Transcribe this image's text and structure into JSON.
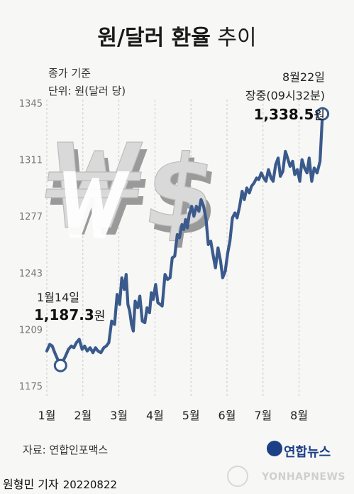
{
  "title": {
    "bold": "원/달러 환율",
    "normal": " 추이"
  },
  "notes": {
    "line1": "종가 기준",
    "line2": "단위: 원(달러 당)"
  },
  "annotations": {
    "end": {
      "date": "8월22일",
      "time": "장중(09시32분)",
      "value": "1,338.5",
      "unit": "원"
    },
    "start": {
      "date": "1월14일",
      "value": "1,187.3",
      "unit": "원"
    }
  },
  "source": "자료: 연합인포맥스",
  "byline": {
    "reporter": "원형민 기자",
    "date": "20220822"
  },
  "logo": {
    "name": "연합뉴스",
    "agency": "YONHAPNEWS"
  },
  "colors": {
    "line": "#3a5a8c",
    "marker_stroke": "#3a5a8c",
    "marker_fill": "#ffffff",
    "grid": "#c8c8c8",
    "background": "#f7f7f5"
  },
  "icons": [
    "won-dollar-3d-symbol-icon",
    "yonhap-logo-icon",
    "yonhap-watermark-icon"
  ],
  "chart_data": {
    "type": "line",
    "title": "원/달러 환율 추이",
    "xlabel": "",
    "ylabel": "",
    "ylim": [
      1175,
      1345
    ],
    "yticks": [
      1175,
      1209,
      1243,
      1277,
      1311,
      1345
    ],
    "xticks": [
      "1월",
      "2월",
      "3월",
      "4월",
      "5월",
      "6월",
      "7월",
      "8월"
    ],
    "grid": "vertical dashed",
    "x_domain": [
      0.0,
      7.7
    ],
    "series": [
      {
        "name": "",
        "x": [
          0.0,
          0.08,
          0.15,
          0.22,
          0.3,
          0.38,
          0.45,
          0.52,
          0.6,
          0.68,
          0.75,
          0.82,
          0.9,
          0.98,
          1.05,
          1.12,
          1.2,
          1.28,
          1.35,
          1.42,
          1.5,
          1.58,
          1.65,
          1.72,
          1.8,
          1.88,
          1.95,
          2.02,
          2.08,
          2.15,
          2.2,
          2.25,
          2.3,
          2.35,
          2.4,
          2.45,
          2.52,
          2.58,
          2.65,
          2.72,
          2.78,
          2.85,
          2.9,
          2.95,
          3.02,
          3.08,
          3.15,
          3.2,
          3.28,
          3.35,
          3.42,
          3.48,
          3.55,
          3.62,
          3.68,
          3.75,
          3.8,
          3.85,
          3.9,
          3.95,
          4.02,
          4.08,
          4.15,
          4.22,
          4.28,
          4.35,
          4.42,
          4.48,
          4.55,
          4.62,
          4.68,
          4.75,
          4.82,
          4.88,
          4.95,
          5.02,
          5.08,
          5.15,
          5.22,
          5.28,
          5.35,
          5.42,
          5.48,
          5.55,
          5.62,
          5.68,
          5.75,
          5.82,
          5.88,
          5.95,
          6.02,
          6.08,
          6.15,
          6.22,
          6.28,
          6.35,
          6.42,
          6.48,
          6.55,
          6.62,
          6.68,
          6.75,
          6.82,
          6.88,
          6.95,
          7.02,
          7.08,
          7.15,
          7.22,
          7.28,
          7.35,
          7.42,
          7.5,
          7.58,
          7.65
        ],
        "values": [
          1196,
          1200,
          1199,
          1195,
          1191,
          1187.3,
          1190,
          1193,
          1197,
          1199,
          1198,
          1201,
          1203,
          1197,
          1199,
          1196,
          1198,
          1195,
          1198,
          1196,
          1195,
          1198,
          1199,
          1201,
          1214,
          1212,
          1230,
          1224,
          1240,
          1233,
          1242,
          1224,
          1220,
          1212,
          1208,
          1226,
          1222,
          1229,
          1214,
          1213,
          1222,
          1219,
          1231,
          1227,
          1236,
          1225,
          1224,
          1223,
          1242,
          1239,
          1240,
          1252,
          1253,
          1266,
          1264,
          1272,
          1269,
          1275,
          1270,
          1278,
          1283,
          1277,
          1283,
          1280,
          1287,
          1283,
          1275,
          1260,
          1262,
          1253,
          1246,
          1258,
          1250,
          1240,
          1244,
          1255,
          1262,
          1276,
          1279,
          1276,
          1283,
          1292,
          1287,
          1294,
          1291,
          1295,
          1297,
          1300,
          1299,
          1303,
          1300,
          1298,
          1305,
          1300,
          1298,
          1308,
          1312,
          1301,
          1304,
          1316,
          1312,
          1307,
          1310,
          1302,
          1305,
          1298,
          1311,
          1306,
          1303,
          1312,
          1298,
          1306,
          1303,
          1310,
          1338.5
        ]
      }
    ],
    "annotated_points": [
      {
        "x": 0.38,
        "value": 1187.3,
        "label": "1월14일 1,187.3원"
      },
      {
        "x": 7.65,
        "value": 1338.5,
        "label": "8월22일 장중(09시32분) 1,338.5원"
      }
    ]
  }
}
